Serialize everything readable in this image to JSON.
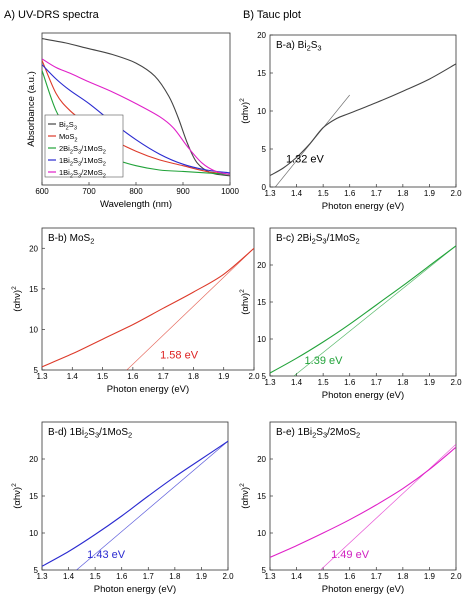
{
  "headers": {
    "a": "A) UV-DRS spectra",
    "b": "B) Tauc plot"
  },
  "chart_data": [
    {
      "id": "uvdrs",
      "type": "line",
      "title": "",
      "xlabel": "Wavelength (nm)",
      "ylabel": "Absorbance (a.u.)",
      "xlim": [
        600,
        1000
      ],
      "xticks": [
        "600",
        "700",
        "800",
        "900",
        "1000"
      ],
      "yticks": [],
      "legend_position": "bottom-left",
      "series": [
        {
          "name": "Bi2S3",
          "color": "#444444",
          "x": [
            600,
            650,
            700,
            750,
            800,
            840,
            870,
            890,
            910,
            930,
            960,
            1000
          ],
          "y": [
            1.0,
            0.97,
            0.93,
            0.89,
            0.83,
            0.74,
            0.6,
            0.45,
            0.27,
            0.14,
            0.07,
            0.05
          ]
        },
        {
          "name": "MoS2",
          "color": "#dd3a2a",
          "x": [
            600,
            630,
            660,
            700,
            750,
            800,
            850,
            900,
            950,
            1000
          ],
          "y": [
            0.85,
            0.62,
            0.5,
            0.4,
            0.3,
            0.22,
            0.16,
            0.12,
            0.08,
            0.06
          ]
        },
        {
          "name": "2Bi2S3/1MoS2",
          "color": "#22a33a",
          "x": [
            600,
            630,
            660,
            700,
            750,
            800,
            850,
            900,
            950,
            1000
          ],
          "y": [
            0.78,
            0.5,
            0.36,
            0.25,
            0.17,
            0.12,
            0.09,
            0.08,
            0.07,
            0.06
          ]
        },
        {
          "name": "1Bi2S3/1MoS2",
          "color": "#2a2ad0",
          "x": [
            600,
            630,
            660,
            700,
            750,
            800,
            850,
            900,
            950,
            1000
          ],
          "y": [
            0.82,
            0.72,
            0.64,
            0.55,
            0.42,
            0.3,
            0.2,
            0.13,
            0.09,
            0.07
          ]
        },
        {
          "name": "1Bi2S3/2MoS2",
          "color": "#e020c8",
          "x": [
            600,
            630,
            660,
            700,
            750,
            800,
            850,
            880,
            910,
            940,
            970,
            1000
          ],
          "y": [
            0.86,
            0.8,
            0.76,
            0.7,
            0.63,
            0.55,
            0.46,
            0.38,
            0.25,
            0.14,
            0.08,
            0.06
          ]
        }
      ]
    },
    {
      "id": "b_a",
      "type": "line",
      "title": "B-a) Bi2S3",
      "xlabel": "Photon energy (eV)",
      "ylabel": "(αhν)²",
      "xlim": [
        1.3,
        2.0
      ],
      "ylim": [
        0,
        20
      ],
      "xticks": [
        "1.3",
        "1.4",
        "1.5",
        "1.6",
        "1.7",
        "1.8",
        "1.9",
        "2.0"
      ],
      "yticks": [
        "0",
        "5",
        "10",
        "15",
        "20"
      ],
      "color": "#444444",
      "annotation": {
        "text": "1.32 eV",
        "color": "#000000",
        "x": 1.36,
        "y": 3.2
      },
      "series": [
        {
          "name": "",
          "x": [
            1.3,
            1.35,
            1.4,
            1.45,
            1.5,
            1.55,
            1.6,
            1.7,
            1.8,
            1.9,
            2.0
          ],
          "y": [
            1.5,
            2.5,
            3.9,
            5.7,
            7.8,
            9.0,
            9.7,
            11.1,
            12.6,
            14.2,
            16.2
          ]
        },
        {
          "name": "",
          "style": "fit",
          "x": [
            1.32,
            1.6
          ],
          "y": [
            0.0,
            12.1
          ]
        }
      ]
    },
    {
      "id": "b_b",
      "type": "line",
      "title": "B-b) MoS2",
      "xlabel": "Photon energy (eV)",
      "ylabel": "(αhν)²",
      "xlim": [
        1.3,
        2.0
      ],
      "ylim": [
        5,
        22.5
      ],
      "xticks": [
        "1.3",
        "1.4",
        "1.5",
        "1.6",
        "1.7",
        "1.8",
        "1.9",
        "2.0"
      ],
      "yticks": [
        "5",
        "10",
        "15",
        "20"
      ],
      "color": "#dd3a2a",
      "annotation": {
        "text": "1.58 eV",
        "color": "#dd2222",
        "x": 1.69,
        "y": 6.4
      },
      "series": [
        {
          "name": "",
          "x": [
            1.3,
            1.4,
            1.5,
            1.6,
            1.7,
            1.8,
            1.9,
            2.0
          ],
          "y": [
            5.4,
            7.0,
            8.8,
            10.6,
            12.6,
            14.6,
            16.8,
            20.0
          ]
        },
        {
          "name": "",
          "style": "fit",
          "x": [
            1.58,
            2.0
          ],
          "y": [
            5.0,
            20.0
          ]
        }
      ]
    },
    {
      "id": "b_c",
      "type": "line",
      "title": "B-c) 2Bi2S3/1MoS2",
      "xlabel": "Photon energy (eV)",
      "ylabel": "(αhν)²",
      "xlim": [
        1.3,
        2.0
      ],
      "ylim": [
        5,
        25
      ],
      "xticks": [
        "1.3",
        "1.4",
        "1.5",
        "1.6",
        "1.7",
        "1.8",
        "1.9",
        "2.0"
      ],
      "yticks": [
        "5",
        "10",
        "15",
        "20"
      ],
      "color": "#22a33a",
      "annotation": {
        "text": "1.39 eV",
        "color": "#22a33a",
        "x": 1.43,
        "y": 6.6
      },
      "series": [
        {
          "name": "",
          "x": [
            1.3,
            1.4,
            1.5,
            1.6,
            1.7,
            1.8,
            1.9,
            2.0
          ],
          "y": [
            5.4,
            7.4,
            9.6,
            12.0,
            14.6,
            17.2,
            19.9,
            22.6
          ]
        },
        {
          "name": "",
          "style": "fit",
          "x": [
            1.39,
            2.0
          ],
          "y": [
            5.0,
            22.6
          ]
        }
      ]
    },
    {
      "id": "b_d",
      "type": "line",
      "title": "B-d) 1Bi2S3/1MoS2",
      "xlabel": "Photon energy (eV)",
      "ylabel": "(αhν)²",
      "xlim": [
        1.3,
        2.0
      ],
      "ylim": [
        5,
        25
      ],
      "xticks": [
        "1.3",
        "1.4",
        "1.5",
        "1.6",
        "1.7",
        "1.8",
        "1.9",
        "2.0"
      ],
      "yticks": [
        "5",
        "10",
        "15",
        "20"
      ],
      "color": "#2a2ad0",
      "annotation": {
        "text": "1.43 eV",
        "color": "#2a2ad0",
        "x": 1.47,
        "y": 6.6
      },
      "series": [
        {
          "name": "",
          "x": [
            1.3,
            1.4,
            1.5,
            1.6,
            1.7,
            1.8,
            1.9,
            2.0
          ],
          "y": [
            5.5,
            7.5,
            9.8,
            12.3,
            15.0,
            17.6,
            20.0,
            22.4
          ]
        },
        {
          "name": "",
          "style": "fit",
          "x": [
            1.43,
            2.0
          ],
          "y": [
            5.0,
            22.4
          ]
        }
      ]
    },
    {
      "id": "b_e",
      "type": "line",
      "title": "B-e) 1Bi2S3/2MoS2",
      "xlabel": "Photon energy (eV)",
      "ylabel": "(αhν)²",
      "xlim": [
        1.3,
        2.0
      ],
      "ylim": [
        5,
        25
      ],
      "xticks": [
        "1.3",
        "1.4",
        "1.5",
        "1.6",
        "1.7",
        "1.8",
        "1.9",
        "2.0"
      ],
      "yticks": [
        "5",
        "10",
        "15",
        "20"
      ],
      "color": "#e020c8",
      "annotation": {
        "text": "1.49 eV",
        "color": "#d020c0",
        "x": 1.53,
        "y": 6.6
      },
      "series": [
        {
          "name": "",
          "x": [
            1.3,
            1.4,
            1.5,
            1.6,
            1.7,
            1.8,
            1.9,
            2.0
          ],
          "y": [
            6.7,
            8.3,
            10.0,
            11.8,
            13.8,
            16.0,
            18.6,
            21.6
          ]
        },
        {
          "name": "",
          "style": "fit",
          "x": [
            1.49,
            2.0
          ],
          "y": [
            5.0,
            22.0
          ]
        }
      ]
    }
  ]
}
